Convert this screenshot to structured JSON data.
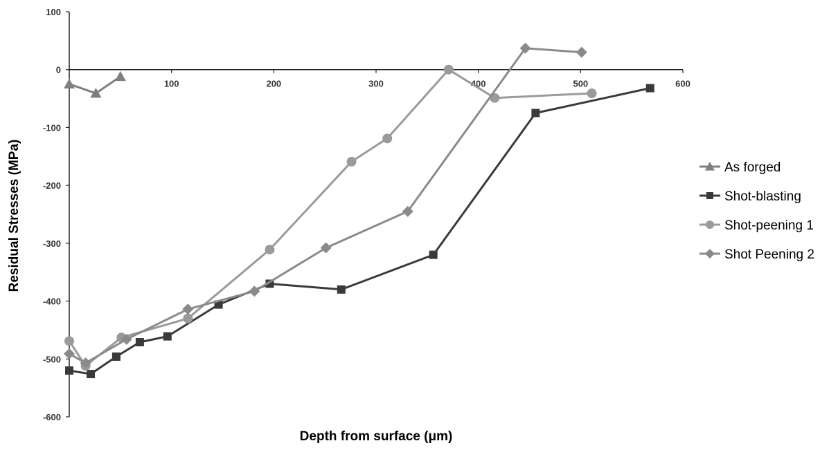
{
  "chart_data": {
    "type": "line",
    "xlabel": "Depth from surface (μm)",
    "ylabel": "Residual Stresses (MPa)",
    "xlim": [
      0,
      600
    ],
    "ylim": [
      -600,
      100
    ],
    "x_ticks": [
      "100",
      "200",
      "300",
      "400",
      "500",
      "600"
    ],
    "y_ticks": [
      "100",
      "0",
      "-100",
      "-200",
      "-300",
      "-400",
      "-500",
      "-600"
    ],
    "grid": false,
    "legend_position": "right",
    "series": [
      {
        "name": "As forged",
        "marker": "triangle",
        "color": "#7f7f7f",
        "points": [
          [
            0,
            -25
          ],
          [
            26,
            -41
          ],
          [
            50,
            -12
          ]
        ]
      },
      {
        "name": "Shot-blasting",
        "marker": "square",
        "color": "#3a3a3a",
        "points": [
          [
            0,
            -520
          ],
          [
            21,
            -526
          ],
          [
            46,
            -496
          ],
          [
            69,
            -471
          ],
          [
            96,
            -461
          ],
          [
            146,
            -406
          ],
          [
            196,
            -370
          ],
          [
            266,
            -380
          ],
          [
            356,
            -320
          ],
          [
            456,
            -75
          ],
          [
            568,
            -32
          ]
        ]
      },
      {
        "name": "Shot-peening 1",
        "marker": "circle",
        "color": "#9a9a9a",
        "points": [
          [
            0,
            -469
          ],
          [
            16,
            -512
          ],
          [
            51,
            -463
          ],
          [
            116,
            -430
          ],
          [
            196,
            -311
          ],
          [
            276,
            -159
          ],
          [
            311,
            -119
          ],
          [
            371,
            0
          ],
          [
            416,
            -49
          ],
          [
            511,
            -41
          ]
        ]
      },
      {
        "name": "Shot Peening 2",
        "marker": "diamond",
        "color": "#8a8a8a",
        "points": [
          [
            0,
            -491
          ],
          [
            16,
            -507
          ],
          [
            56,
            -466
          ],
          [
            116,
            -414
          ],
          [
            181,
            -383
          ],
          [
            251,
            -308
          ],
          [
            331,
            -245
          ],
          [
            446,
            37
          ],
          [
            501,
            30
          ]
        ]
      }
    ]
  }
}
